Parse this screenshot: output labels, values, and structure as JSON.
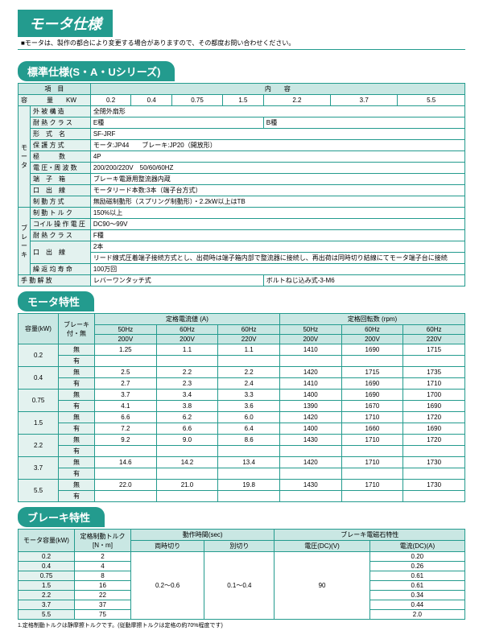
{
  "page_title": "モータ仕様",
  "top_note": "■モータは、製作の都合により変更する場合がありますので、その都度お問い合わせください。",
  "section1": {
    "title": "標準仕様(S・A・Uシリーズ)",
    "h_item": "項　目",
    "h_content": "内　　容",
    "rows": {
      "cap_label": "容　　　量　　KW",
      "cap_vals": [
        "0.2",
        "0.4",
        "0.75",
        "1.5",
        "2.2",
        "3.7",
        "5.5"
      ],
      "gaikei": "外 被 構 造",
      "gaikei_v": "全閉外扇形",
      "tainetsu": "耐 熱 ク ラ ス",
      "tainetsu_v1": "E種",
      "tainetsu_v2": "B種",
      "keishiki": "形　式　名",
      "keishiki_v": "SF-JRF",
      "hogo": "保 護 方 式",
      "hogo_v": "モータ:JP44　　ブレーキ:JP20（開放形）",
      "kyoku": "極　　　数",
      "kyoku_v": "4P",
      "denatsu": "電 圧・周 波 数",
      "denatsu_v": "200/200/220V　50/60/60HZ",
      "tanshi": "端　子　箱",
      "tanshi_v": "ブレーキ電源用整流器内蔵",
      "kuchi": "口　出　線",
      "kuchi_v": "モータリード本数:3本（端子台方式）",
      "seido": "制 動 方 式",
      "seido_v": "無励磁制動形（スプリング制動形）・2.2kW以上はTB",
      "torque": "制 動 ト ル ク",
      "torque_v": "150%以上",
      "coil": "コイル 操 作 電 圧",
      "coil_v": "DC90～99V",
      "tainetsu2": "耐 熱 ク ラ ス",
      "tainetsu2_v": "F種",
      "kuchi2": "口　出　線",
      "kuchi2_v": "2本",
      "lead": "リード線式圧着端子接続方式とし、出荷時は端子箱内部で整流器に接続し、再出荷は同時切り結線にてモータ端子台に接続",
      "jumyo": "繰 返 均 寿 命",
      "jumyo_v": "100万回",
      "shudo": "手 動 解 放",
      "shudo_v": "レバーワンタッチ式",
      "shudo_v2": "ボルトねじ込み式-3-M6"
    },
    "side_motor": "モータ",
    "side_brake": "ブレーキ"
  },
  "section2": {
    "title": "モータ特性",
    "h_cap": "容量(kW)",
    "h_brake": "ブレーキ付・無",
    "h_amp": "定格電流値 (A)",
    "h_rpm": "定格回転数 (rpm)",
    "h_50": "50Hz",
    "h_60": "60Hz",
    "h_200": "200V",
    "h_220": "220V",
    "mu": "無",
    "ari": "有",
    "caps": [
      "0.2",
      "0.4",
      "0.75",
      "1.5",
      "2.2",
      "3.7",
      "5.5"
    ],
    "r02_mu": [
      "1.25",
      "1.1",
      "1.1",
      "1410",
      "1690",
      "1715"
    ],
    "r02_ar": [
      "",
      "",
      "",
      "",
      "",
      ""
    ],
    "r04_mu": [
      "2.5",
      "2.2",
      "2.2",
      "1420",
      "1715",
      "1735"
    ],
    "r04_ar": [
      "2.7",
      "2.3",
      "2.4",
      "1410",
      "1690",
      "1710"
    ],
    "r075_mu": [
      "3.7",
      "3.4",
      "3.3",
      "1400",
      "1690",
      "1700"
    ],
    "r075_ar": [
      "4.1",
      "3.8",
      "3.6",
      "1390",
      "1670",
      "1690"
    ],
    "r15_mu": [
      "6.6",
      "6.2",
      "6.0",
      "1420",
      "1710",
      "1720"
    ],
    "r15_ar": [
      "7.2",
      "6.6",
      "6.4",
      "1400",
      "1660",
      "1690"
    ],
    "r22_mu": [
      "9.2",
      "9.0",
      "8.6",
      "1430",
      "1710",
      "1720"
    ],
    "r22_ar": [
      "",
      "",
      "",
      "",
      "",
      ""
    ],
    "r37_mu": [
      "14.6",
      "14.2",
      "13.4",
      "1420",
      "1710",
      "1730"
    ],
    "r37_ar": [
      "",
      "",
      "",
      "",
      "",
      ""
    ],
    "r55_mu": [
      "22.0",
      "21.0",
      "19.8",
      "1430",
      "1710",
      "1730"
    ],
    "r55_ar": [
      "",
      "",
      "",
      "",
      "",
      ""
    ]
  },
  "section3": {
    "title": "ブレーキ特性",
    "h_cap": "モータ容量(kW)",
    "h_torque": "定格制動トルク[N・m]",
    "h_time": "動作時間(sec)",
    "h_time1": "両時切り",
    "h_time2": "別切り",
    "h_mag": "ブレーキ電磁石特性",
    "h_v": "電圧(DC)(V)",
    "h_a": "電流(DC)(A)",
    "caps": [
      "0.2",
      "0.4",
      "0.75",
      "1.5",
      "2.2",
      "3.7",
      "5.5"
    ],
    "tq": [
      "2",
      "4",
      "8",
      "16",
      "22",
      "37",
      "75"
    ],
    "t1": "0.2～0.6",
    "t2": "0.1～0.4",
    "volt": "90",
    "amp": [
      "0.20",
      "0.26",
      "0.61",
      "0.61",
      "0.34",
      "0.44",
      "2.0"
    ],
    "note": "1.定格制動トルクは静摩擦トルクです。(従動摩擦トルクは定格の約70%程度です)"
  }
}
